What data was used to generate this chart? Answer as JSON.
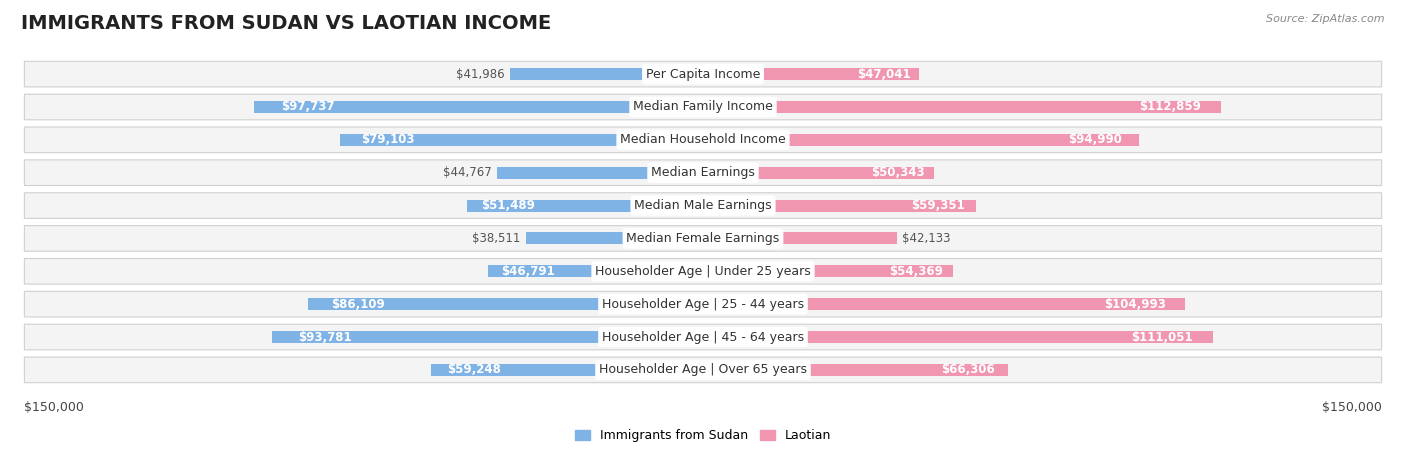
{
  "title": "IMMIGRANTS FROM SUDAN VS LAOTIAN INCOME",
  "source": "Source: ZipAtlas.com",
  "categories": [
    "Per Capita Income",
    "Median Family Income",
    "Median Household Income",
    "Median Earnings",
    "Median Male Earnings",
    "Median Female Earnings",
    "Householder Age | Under 25 years",
    "Householder Age | 25 - 44 years",
    "Householder Age | 45 - 64 years",
    "Householder Age | Over 65 years"
  ],
  "sudan_values": [
    41986,
    97737,
    79103,
    44767,
    51489,
    38511,
    46791,
    86109,
    93781,
    59248
  ],
  "laotian_values": [
    47041,
    112859,
    94990,
    50343,
    59351,
    42133,
    54369,
    104993,
    111051,
    66306
  ],
  "sudan_color": "#7fb2e5",
  "laotian_color": "#f096b0",
  "sudan_label": "Immigrants from Sudan",
  "laotian_label": "Laotian",
  "max_value": 150000,
  "x_label_left": "$150,000",
  "x_label_right": "$150,000",
  "background_color": "#ffffff",
  "title_fontsize": 14,
  "cat_fontsize": 9,
  "value_fontsize": 8.5,
  "source_fontsize": 8,
  "legend_fontsize": 9,
  "value_inside_threshold": 0.3
}
